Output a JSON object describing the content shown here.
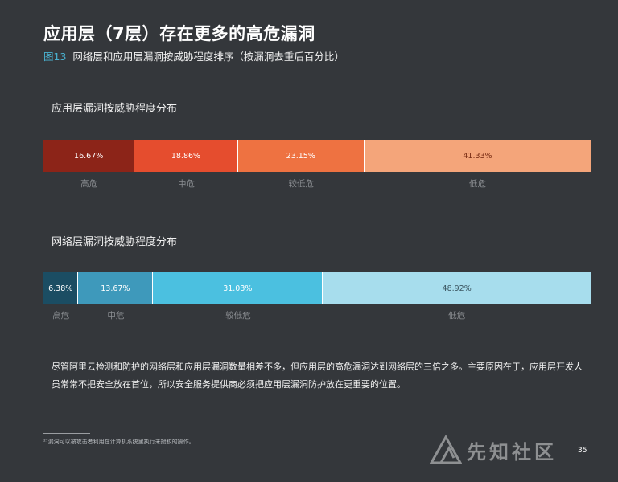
{
  "page": {
    "title": "应用层（7层）存在更多的高危漏洞",
    "figure_label": "图13",
    "subtitle": "网络层和应用层漏洞按威胁程度排序（按漏洞去重后百分比）",
    "body_text": "尽管阿里云检测和防护的网络层和应用层漏洞数量相差不多，但应用层的高危漏洞达到网络层的三倍之多。主要原因在于，应用层开发人员常常不把安全放在首位，所以安全服务提供商必须把应用层漏洞防护放在更重要的位置。",
    "footnote": "²⁷漏洞可以被攻击者利用在计算机系统里执行未授权的操作。",
    "page_number": "35",
    "watermark": "先知社区"
  },
  "chart_data": [
    {
      "type": "bar",
      "orientation": "horizontal-stacked-100",
      "title": "应用层漏洞按威胁程度分布",
      "categories": [
        "高危",
        "中危",
        "较低危",
        "低危"
      ],
      "values": [
        16.67,
        18.86,
        23.15,
        41.33
      ],
      "value_labels": [
        "16.67%",
        "18.86%",
        "23.15%",
        "41.33%"
      ],
      "colors": [
        "#8c2418",
        "#e54d2e",
        "#ee7241",
        "#f4a57a"
      ],
      "label_colors": [
        "#ffffff",
        "#ffffff",
        "#ffffff",
        "#7a2d15"
      ],
      "unit": "%",
      "xlim": [
        0,
        100
      ]
    },
    {
      "type": "bar",
      "orientation": "horizontal-stacked-100",
      "title": "网络层漏洞按威胁程度分布",
      "categories": [
        "高危",
        "中危",
        "较低危",
        "低危"
      ],
      "values": [
        6.38,
        13.67,
        31.03,
        48.92
      ],
      "value_labels": [
        "6.38%",
        "13.67%",
        "31.03%",
        "48.92%"
      ],
      "colors": [
        "#1b4d63",
        "#3e99bb",
        "#4bc0e0",
        "#a7dded"
      ],
      "label_colors": [
        "#ffffff",
        "#ffffff",
        "#ffffff",
        "#3b5560"
      ],
      "unit": "%",
      "xlim": [
        0,
        100
      ]
    }
  ]
}
